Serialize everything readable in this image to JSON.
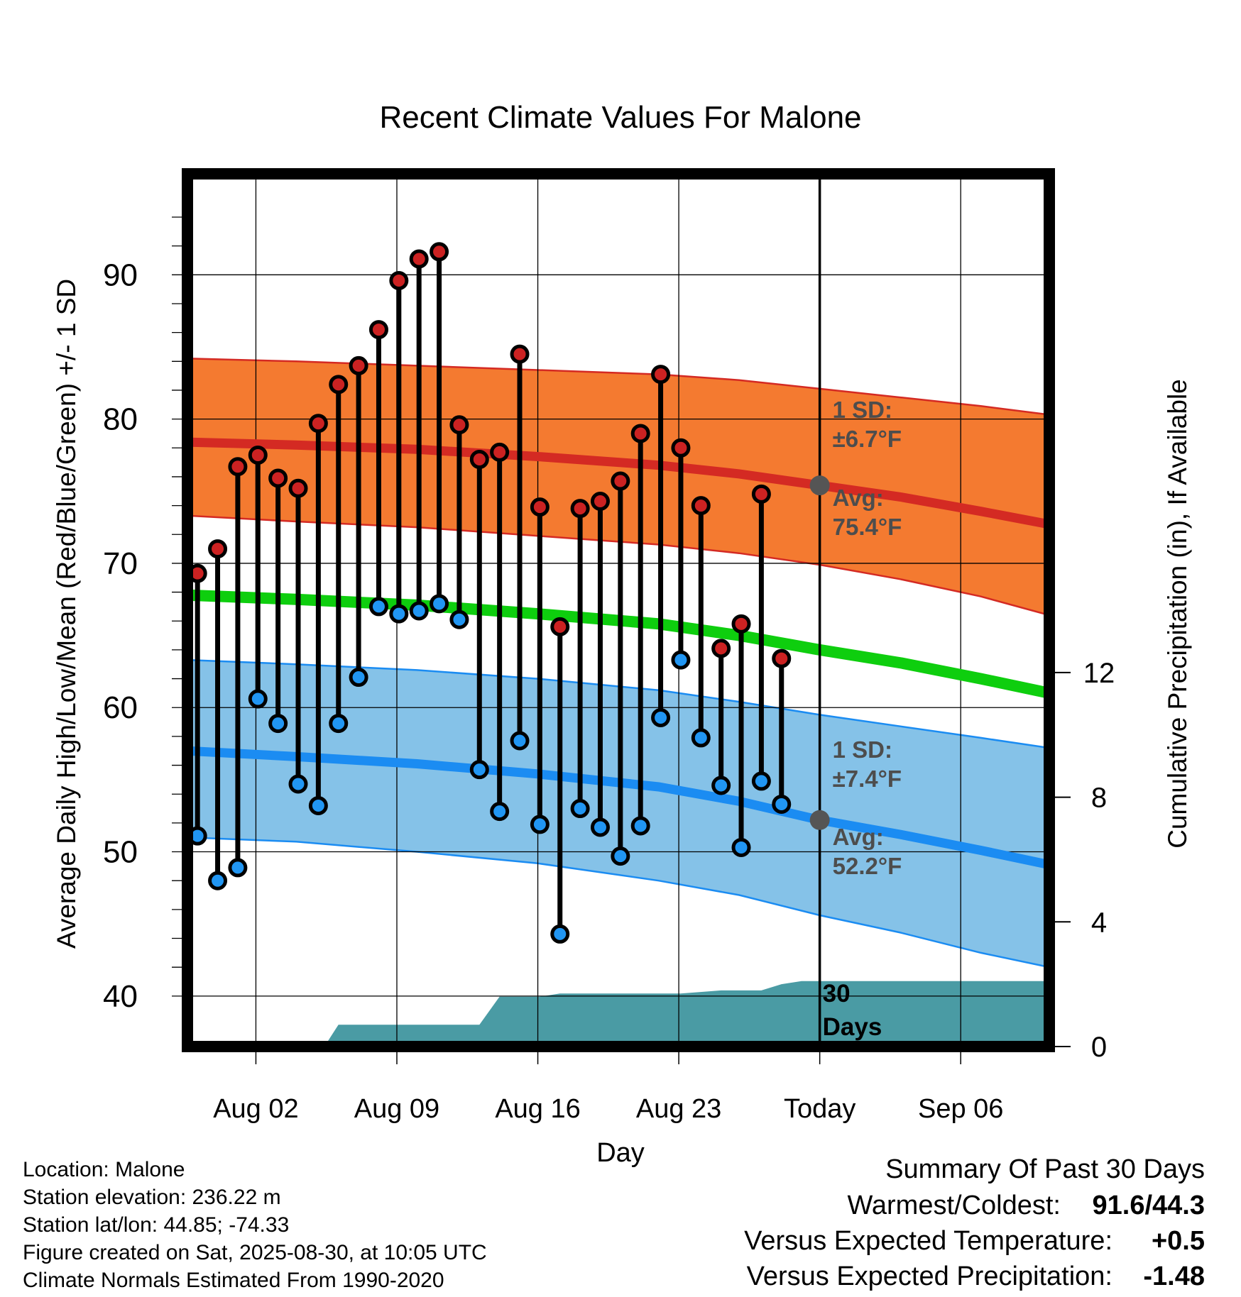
{
  "chart_data": {
    "type": "line",
    "title": "Recent Climate Values For Malone",
    "xlabel": "Day",
    "ylabel": "Average Daily High/Low/Mean (Red/Blue/Green) +/- 1 SD",
    "ylabel_right": "Cumulative Precipitation (in), If Available",
    "ylim": [
      36.5,
      97
    ],
    "y2lim": [
      0,
      28
    ],
    "xlim": [
      -1.4,
      41.4
    ],
    "x_ticks": [
      {
        "day": 2,
        "label": "Aug 02"
      },
      {
        "day": 9,
        "label": "Aug 09"
      },
      {
        "day": 16,
        "label": "Aug 16"
      },
      {
        "day": 23,
        "label": "Aug 23"
      },
      {
        "day": 30,
        "label": "Today"
      },
      {
        "day": 37,
        "label": "Sep 06"
      }
    ],
    "y_ticks": [
      40,
      50,
      60,
      70,
      80,
      90
    ],
    "y2_ticks": [
      0,
      4,
      8,
      12
    ],
    "today_day": 30,
    "days": [
      -0.9,
      0.1,
      1.1,
      2.1,
      3.1,
      4.1,
      5.1,
      6.1,
      7.1,
      8.1,
      9.1,
      10.1,
      11.1,
      12.1,
      13.1,
      14.1,
      15.1,
      16.1,
      17.1,
      18.1,
      19.1,
      20.1,
      21.1,
      22.1,
      23.1,
      24.1,
      25.1,
      26.1,
      27.1,
      28.1,
      29.1
    ],
    "highs": [
      69.3,
      71.0,
      76.7,
      77.5,
      75.9,
      75.2,
      79.7,
      82.4,
      83.7,
      86.2,
      89.6,
      91.1,
      91.6,
      79.6,
      77.2,
      77.7,
      84.5,
      73.9,
      65.6,
      73.8,
      74.3,
      75.7,
      79.0,
      83.1,
      78.0,
      74.0,
      64.1,
      65.8,
      74.8,
      63.4,
      null
    ],
    "lows": [
      51.1,
      48.0,
      48.9,
      60.6,
      58.9,
      54.7,
      53.2,
      58.9,
      62.1,
      67.0,
      66.5,
      66.7,
      67.2,
      66.1,
      55.7,
      52.8,
      57.7,
      51.9,
      44.3,
      53.0,
      51.7,
      49.7,
      51.8,
      59.3,
      63.3,
      57.9,
      54.6,
      50.3,
      54.9,
      53.3,
      null
    ],
    "normals": {
      "x": [
        -1.4,
        4,
        10,
        16,
        22,
        26,
        30,
        34,
        38,
        41.4
      ],
      "high_avg": [
        78.4,
        78.2,
        77.9,
        77.4,
        76.8,
        76.2,
        75.4,
        74.6,
        73.6,
        72.7
      ],
      "high_upper": [
        84.2,
        84.0,
        83.7,
        83.4,
        83.1,
        82.7,
        82.1,
        81.5,
        80.9,
        80.3
      ],
      "high_lower": [
        73.3,
        72.9,
        72.5,
        71.9,
        71.3,
        70.7,
        69.9,
        68.9,
        67.7,
        66.4
      ],
      "low_avg": [
        57.0,
        56.6,
        56.1,
        55.4,
        54.5,
        53.5,
        52.2,
        51.2,
        50.1,
        49.1
      ],
      "low_upper": [
        63.3,
        63.0,
        62.6,
        62.0,
        61.2,
        60.4,
        59.5,
        58.7,
        57.9,
        57.2
      ],
      "low_lower": [
        51.0,
        50.7,
        50.0,
        49.2,
        48.0,
        47.0,
        45.6,
        44.4,
        43.0,
        42.0
      ],
      "mean_avg": [
        67.8,
        67.5,
        67.1,
        66.5,
        65.8,
        65.0,
        64.0,
        63.1,
        62.0,
        61.0
      ]
    },
    "precip_cum": {
      "x": [
        -1.4,
        4,
        5.4,
        6.1,
        9.1,
        10.1,
        13.1,
        14.1,
        16.1,
        17.1,
        20.1,
        23.1,
        25.1,
        27.1,
        28.1,
        29.1,
        30,
        41.4
      ],
      "y": [
        0,
        0,
        0,
        0.7,
        0.7,
        0.7,
        0.7,
        1.6,
        1.6,
        1.7,
        1.7,
        1.7,
        1.8,
        1.8,
        2.0,
        2.1,
        2.1,
        2.1
      ]
    },
    "annotations": {
      "high_sd": "1 SD:",
      "high_sd_val": "±6.7°F",
      "high_avg_label": "Avg:",
      "high_avg_val": "75.4°F",
      "low_sd": "1 SD:",
      "low_sd_val": "±7.4°F",
      "low_avg_label": "Avg:",
      "low_avg_val": "52.2°F",
      "days_count": "30",
      "days_word": "Days"
    },
    "today_high_avg": 75.4,
    "today_low_avg": 52.2,
    "colors": {
      "high_band": "#f47a30",
      "high_line": "#d42a23",
      "low_band": "#85c2e8",
      "low_line": "#1b8cf2",
      "mean_line": "#0ece0e",
      "precip": "#4a9ba4",
      "high_dot": "#cc2222",
      "low_dot": "#2196f3"
    }
  },
  "info": {
    "lines": [
      "Location: Malone",
      "Station elevation: 236.22 m",
      "Station lat/lon: 44.85; -74.33",
      "Figure created on Sat, 2025-08-30, at 10:05 UTC",
      "Climate Normals Estimated From 1990-2020"
    ]
  },
  "summary": {
    "title": "Summary Of Past 30 Days",
    "warm_label": "Warmest/Coldest:",
    "warm_value": "91.6/44.3",
    "temp_label": "Versus Expected Temperature:",
    "temp_value": "+0.5",
    "temp_color": "#cc2222",
    "precip_label": "Versus Expected Precipitation:",
    "precip_value": "-1.48",
    "precip_color": "#a0522d"
  }
}
